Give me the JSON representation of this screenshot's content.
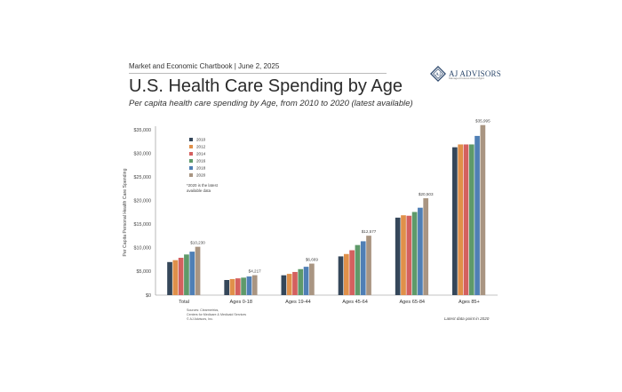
{
  "header": {
    "line": "Market and Economic Chartbook | June 2, 2025",
    "title": "U.S. Health Care Spending by Age",
    "subtitle": "Per capita health care spending by Age, from 2010 to 2020 (latest available)"
  },
  "logo": {
    "name": "AJ ADVISORS",
    "tagline": "Managed Futures Asset Mgmt",
    "icon": "aj-advisors-logo-icon",
    "color": "#2f4a6e"
  },
  "footer": {
    "sources_1": "Sources: Clearmetrics,",
    "sources_2": "Centers for Medicare & Medicaid Services",
    "copyright": "© AJ Advisors, Inc.",
    "latest_note": "Latest data point in 2020"
  },
  "chart_data": {
    "type": "bar",
    "ylabel": "Per Capita Personal Health Care Spending",
    "ylim": [
      0,
      35000
    ],
    "yticks": [
      0,
      5000,
      10000,
      15000,
      20000,
      25000,
      30000,
      35000
    ],
    "ytick_labels": [
      "$0",
      "$5,000",
      "$10,000",
      "$15,000",
      "$20,000",
      "$25,000",
      "$30,000",
      "$35,000"
    ],
    "grid": false,
    "legend_position": "top-left",
    "legend_note_1": "*2020 is the latest",
    "legend_note_2": "available data",
    "categories": [
      "Total",
      "Ages 0-18",
      "Ages 19-44",
      "Ages 45-64",
      "Ages 65-84",
      "Ages 85+"
    ],
    "series": [
      {
        "name": "2010",
        "color": "#35475a",
        "values": [
          7000,
          3200,
          4200,
          8200,
          16400,
          31300
        ]
      },
      {
        "name": "2012",
        "color": "#e0904a",
        "values": [
          7400,
          3400,
          4500,
          8700,
          16900,
          31900
        ]
      },
      {
        "name": "2014",
        "color": "#d4605f",
        "values": [
          7900,
          3550,
          4900,
          9500,
          16800,
          31900
        ]
      },
      {
        "name": "2016",
        "color": "#5e9a6a",
        "values": [
          8600,
          3700,
          5500,
          10600,
          17600,
          31900
        ]
      },
      {
        "name": "2018",
        "color": "#4f7fb5",
        "values": [
          9200,
          3950,
          6000,
          11400,
          18500,
          33700
        ]
      },
      {
        "name": "2020",
        "color": "#a99582",
        "values": [
          10230,
          4217,
          6669,
          12577,
          20503,
          35995
        ]
      }
    ],
    "data_labels": [
      {
        "category": "Total",
        "series": "2020",
        "text": "$10,230"
      },
      {
        "category": "Ages 0-18",
        "series": "2020",
        "text": "$4,217"
      },
      {
        "category": "Ages 19-44",
        "series": "2020",
        "text": "$6,669"
      },
      {
        "category": "Ages 45-64",
        "series": "2020",
        "text": "$12,577"
      },
      {
        "category": "Ages 65-84",
        "series": "2020",
        "text": "$20,503"
      },
      {
        "category": "Ages 85+",
        "series": "2020",
        "text": "$35,995"
      }
    ]
  }
}
